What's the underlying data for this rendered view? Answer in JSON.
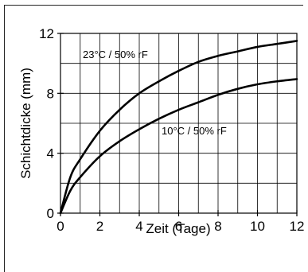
{
  "chart_data": {
    "type": "line",
    "xlabel": "Zeit (Tage)",
    "ylabel": "Schichtdicke (mm)",
    "xlim": [
      0,
      12
    ],
    "ylim": [
      0,
      12
    ],
    "x_ticks": [
      "0",
      "2",
      "4",
      "6",
      "8",
      "10",
      "12"
    ],
    "y_ticks": [
      "0",
      "4",
      "8",
      "12"
    ],
    "grid": true,
    "series": [
      {
        "name": "23°C  / 50% rF",
        "x": [
          0,
          0.5,
          1,
          2,
          3,
          4,
          5,
          6,
          7,
          8,
          9,
          10,
          11,
          12
        ],
        "y": [
          0,
          2.4,
          3.6,
          5.5,
          6.9,
          8.0,
          8.8,
          9.5,
          10.1,
          10.5,
          10.8,
          11.1,
          11.3,
          11.5
        ]
      },
      {
        "name": "10°C / 50% rF",
        "x": [
          0,
          0.5,
          1,
          2,
          3,
          4,
          5,
          6,
          7,
          8,
          9,
          10,
          11,
          12
        ],
        "y": [
          0,
          1.5,
          2.4,
          3.8,
          4.8,
          5.6,
          6.3,
          6.9,
          7.4,
          7.9,
          8.3,
          8.6,
          8.8,
          8.95
        ]
      }
    ]
  }
}
